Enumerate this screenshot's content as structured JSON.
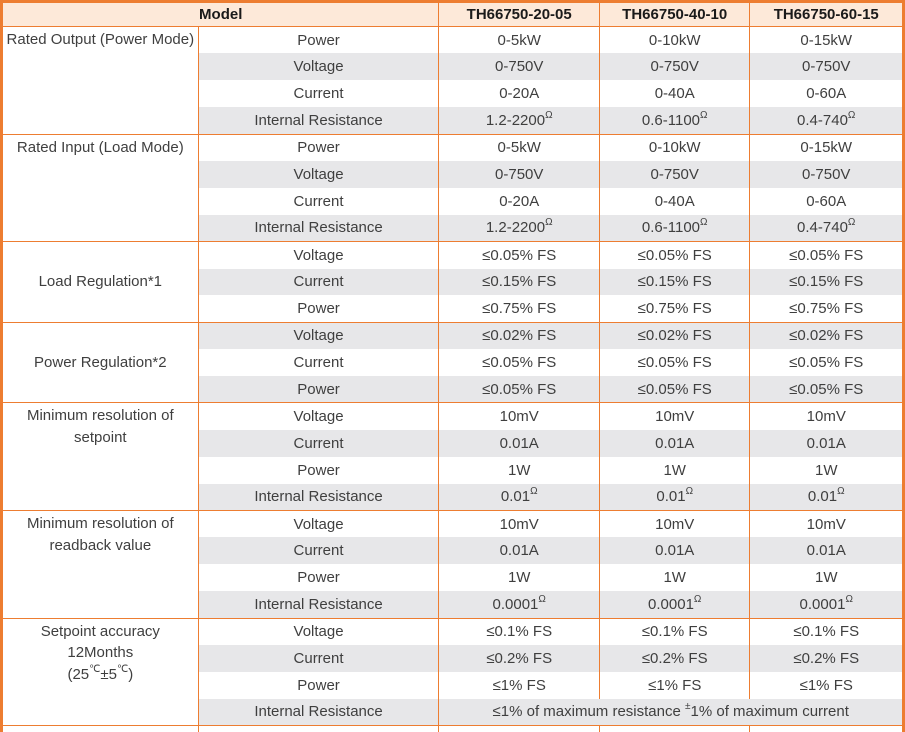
{
  "colors": {
    "border_orange": "#ED7D31",
    "header_bg": "#FDE9D9",
    "row_stripe": "#E7E7E9",
    "text": "#3F3F3F"
  },
  "table": {
    "header": {
      "model_label": "Model",
      "models": [
        "TH66750-20-05",
        "TH66750-40-10",
        "TH66750-60-15"
      ]
    },
    "sections": [
      {
        "group": "Rated Output (Power Mode)",
        "valign": "top",
        "rows": [
          {
            "param": "Power",
            "values": [
              "0-5kW",
              "0-10kW",
              "0-15kW"
            ]
          },
          {
            "param": "Voltage",
            "values": [
              "0-750V",
              "0-750V",
              "0-750V"
            ]
          },
          {
            "param": "Current",
            "values": [
              "0-20A",
              "0-40A",
              "0-60A"
            ]
          },
          {
            "param": "Internal Resistance",
            "values": [
              "1.2-2200^{Ω}",
              "0.6-1100^{Ω}",
              "0.4-740^{Ω}"
            ]
          }
        ]
      },
      {
        "group": "Rated Input (Load Mode)",
        "valign": "top",
        "rows": [
          {
            "param": "Power",
            "values": [
              "0-5kW",
              "0-10kW",
              "0-15kW"
            ]
          },
          {
            "param": "Voltage",
            "values": [
              "0-750V",
              "0-750V",
              "0-750V"
            ]
          },
          {
            "param": "Current",
            "values": [
              "0-20A",
              "0-40A",
              "0-60A"
            ]
          },
          {
            "param": "Internal Resistance",
            "values": [
              "1.2-2200^{Ω}",
              "0.6-1100^{Ω}",
              "0.4-740^{Ω}"
            ]
          }
        ]
      },
      {
        "group": "Load Regulation*1",
        "valign": "middle",
        "rows": [
          {
            "param": "Voltage",
            "values": [
              "≤0.05% FS",
              "≤0.05% FS",
              "≤0.05% FS"
            ]
          },
          {
            "param": "Current",
            "values": [
              "≤0.15% FS",
              "≤0.15% FS",
              "≤0.15% FS"
            ]
          },
          {
            "param": "Power",
            "values": [
              "≤0.75% FS",
              "≤0.75% FS",
              "≤0.75% FS"
            ]
          }
        ]
      },
      {
        "group": "Power Regulation*2",
        "valign": "middle",
        "rows": [
          {
            "param": "Voltage",
            "values": [
              "≤0.02% FS",
              "≤0.02% FS",
              "≤0.02% FS"
            ]
          },
          {
            "param": "Current",
            "values": [
              "≤0.05% FS",
              "≤0.05% FS",
              "≤0.05% FS"
            ]
          },
          {
            "param": "Power",
            "values": [
              "≤0.05% FS",
              "≤0.05% FS",
              "≤0.05% FS"
            ]
          }
        ]
      },
      {
        "group": "Minimum resolution of\nsetpoint",
        "valign": "top",
        "rows": [
          {
            "param": "Voltage",
            "values": [
              "10mV",
              "10mV",
              "10mV"
            ]
          },
          {
            "param": "Current",
            "values": [
              "0.01A",
              "0.01A",
              "0.01A"
            ]
          },
          {
            "param": "Power",
            "values": [
              "1W",
              "1W",
              "1W"
            ]
          },
          {
            "param": "Internal Resistance",
            "values": [
              "0.01^{Ω}",
              "0.01^{Ω}",
              "0.01^{Ω}"
            ]
          }
        ]
      },
      {
        "group": "Minimum resolution of\nreadback value",
        "valign": "top",
        "rows": [
          {
            "param": "Voltage",
            "values": [
              "10mV",
              "10mV",
              "10mV"
            ]
          },
          {
            "param": "Current",
            "values": [
              "0.01A",
              "0.01A",
              "0.01A"
            ]
          },
          {
            "param": "Power",
            "values": [
              "1W",
              "1W",
              "1W"
            ]
          },
          {
            "param": "Internal Resistance",
            "values": [
              "0.0001^{Ω}",
              "0.0001^{Ω}",
              "0.0001^{Ω}"
            ]
          }
        ]
      },
      {
        "group": "Setpoint accuracy 12Months\n(25^{℃}±5^{℃})",
        "valign": "top",
        "rows": [
          {
            "param": "Voltage",
            "values": [
              "≤0.1% FS",
              "≤0.1% FS",
              "≤0.1% FS"
            ]
          },
          {
            "param": "Current",
            "values": [
              "≤0.2% FS",
              "≤0.2% FS",
              "≤0.2% FS"
            ]
          },
          {
            "param": "Power",
            "values": [
              "≤1% FS",
              "≤1% FS",
              "≤1% FS"
            ]
          },
          {
            "param": "Internal Resistance",
            "merged": "≤1% of maximum resistance ^{±}1% of maximum current"
          }
        ]
      }
    ]
  }
}
